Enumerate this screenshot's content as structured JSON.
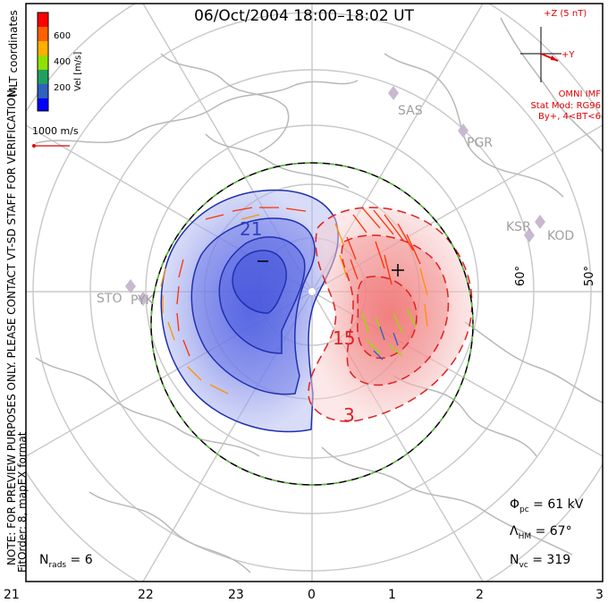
{
  "title": "06/Oct/2004 18:00–18:02 UT",
  "colorbar": {
    "label": "Vel [m/s]",
    "ticks": [
      "600",
      "400",
      "200"
    ],
    "colors": [
      "#ff0000",
      "#ff6000",
      "#ffb000",
      "#90e000",
      "#20a060",
      "#3060c0",
      "#0000ff"
    ]
  },
  "coords_label": "MLT coordinates",
  "vector_scale": "1000 m/s",
  "notes": {
    "preview": "NOTE: FOR PREVIEW PURPOSES ONLY. PLEASE CONTACT VT-SD STAFF FOR VERIFICATION.",
    "fitorder": "FitOrder: 8, mapEX format"
  },
  "imf": {
    "z_label": "+Z (5 nT)",
    "y_label": "+Y",
    "source": "OMNI IMF",
    "model": "Stat Mod: RG96",
    "condition": "By+, 4<BT<6"
  },
  "stations": [
    "SAS",
    "PGR",
    "KSR",
    "KOD",
    "STO",
    "PYK"
  ],
  "latitude_labels": [
    "60°",
    "50°"
  ],
  "contours": {
    "negative": "21",
    "positive": "15",
    "positive2": "3"
  },
  "stats": {
    "phi_pc": "61 kV",
    "lambda_hm": "67°",
    "n_vc": "319",
    "n_rads": "6"
  },
  "mlt_ticks": [
    "21",
    "22",
    "23",
    "0",
    "1",
    "2",
    "3"
  ],
  "colors": {
    "negative": "#3040c0",
    "positive": "#e02020",
    "hmb": "#60c040"
  }
}
